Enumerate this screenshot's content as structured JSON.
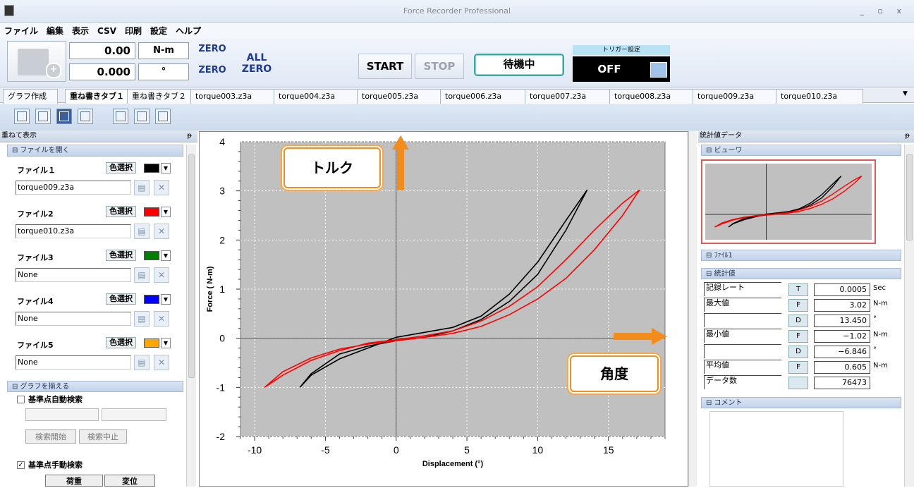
{
  "window": {
    "title": "Force Recorder Professional",
    "controls": "_ ▫ x"
  },
  "menu": [
    "ファイル",
    "編集",
    "表示",
    "CSV",
    "印刷",
    "設定",
    "ヘルプ"
  ],
  "toolbar": {
    "force_value": "0.00",
    "force_unit": "N-m",
    "angle_value": "0.000",
    "angle_unit": "°",
    "zero1": "ZERO",
    "zero2": "ZERO",
    "all_zero_1": "ALL",
    "all_zero_2": "ZERO",
    "start": "START",
    "stop": "STOP",
    "status": "待機中",
    "trigger_label": "トリガー設定",
    "trigger_value": "OFF"
  },
  "tabs": [
    "グラフ作成",
    "重ね書きタブ１",
    "重ね書きタブ２",
    "torque003.z3a",
    "torque004.z3a",
    "torque005.z3a",
    "torque006.z3a",
    "torque007.z3a",
    "torque008.z3a",
    "torque009.z3a",
    "torque010.z3a"
  ],
  "tab_menu_arrow": "▼",
  "left_panel": {
    "title": "重ねて表示",
    "pin": "ᵽ",
    "section_open": "⊟ ファイルを開く",
    "color_select": "色選択",
    "files": [
      {
        "label": "ファイル１",
        "value": "torque009.z3a",
        "color": "#000000"
      },
      {
        "label": "ファイル2",
        "value": "torque010.z3a",
        "color": "#ff0000"
      },
      {
        "label": "ファイル3",
        "value": "None",
        "color": "#008000"
      },
      {
        "label": "ファイル4",
        "value": "None",
        "color": "#0000ff"
      },
      {
        "label": "ファイル5",
        "value": "None",
        "color": "#ffa500"
      }
    ],
    "section_align": "⊟ グラフを揃える",
    "auto_search": "基準点自動検索",
    "search_start": "検索開始",
    "search_stop": "検索中止",
    "manual_search": "基準点手動検索",
    "col_load": "荷重",
    "col_disp": "変位"
  },
  "chart_data": {
    "type": "line",
    "xlabel": "Displacement (°)",
    "ylabel": "Force ( N-m)",
    "xlim": [
      -11,
      19
    ],
    "ylim": [
      -2,
      4
    ],
    "xticks": [
      "-10",
      "-5",
      "0",
      "5",
      "10",
      "15"
    ],
    "yticks": [
      "-2",
      "-1",
      "0",
      "1",
      "2",
      "3",
      "4"
    ],
    "grid": true,
    "series": [
      {
        "color": "#000000",
        "x": [
          -6.8,
          -6,
          -4,
          -2,
          0,
          2,
          4,
          6,
          8,
          10,
          12,
          13.5,
          12,
          10,
          8,
          6,
          4,
          2,
          0,
          -2,
          -4,
          -6,
          -6.8
        ],
        "y": [
          -1.0,
          -0.75,
          -0.42,
          -0.2,
          0.02,
          0.12,
          0.22,
          0.45,
          0.9,
          1.55,
          2.4,
          3.02,
          2.2,
          1.3,
          0.75,
          0.38,
          0.15,
          0.02,
          -0.05,
          -0.16,
          -0.32,
          -0.72,
          -1.0
        ]
      },
      {
        "color": "#ff0000",
        "x": [
          -9.3,
          -8,
          -6,
          -4,
          -2,
          0,
          2,
          4,
          6,
          8,
          10,
          12,
          14,
          16,
          17.2,
          16,
          14,
          12,
          10,
          8,
          6,
          4,
          2,
          0,
          -2,
          -4,
          -6,
          -8,
          -9.3
        ],
        "y": [
          -1.0,
          -0.75,
          -0.45,
          -0.25,
          -0.1,
          -0.03,
          0.05,
          0.15,
          0.35,
          0.65,
          1.05,
          1.6,
          2.2,
          2.75,
          3.02,
          2.5,
          1.8,
          1.22,
          0.8,
          0.48,
          0.24,
          0.1,
          0.02,
          -0.05,
          -0.12,
          -0.22,
          -0.4,
          -0.68,
          -1.0
        ]
      }
    ]
  },
  "annotations": {
    "torque": "トルク",
    "angle": "角度"
  },
  "right_panel": {
    "title": "統計値データ",
    "pin": "ᵽ",
    "viewer": "⊟ ビューワ",
    "file1": "⊟ ﾌｧｲﾙ1",
    "stats": "⊟ 統計値",
    "comment": "⊟ コメント",
    "rows": [
      {
        "label": "記録レート",
        "letter": "T",
        "value": "0.0005",
        "unit": "Sec"
      },
      {
        "label": "最大値",
        "letter": "F",
        "value": "3.02",
        "unit": "N-m"
      },
      {
        "label": "",
        "letter": "D",
        "value": "13.450",
        "unit": "°"
      },
      {
        "label": "最小値",
        "letter": "F",
        "value": "−1.02",
        "unit": "N-m"
      },
      {
        "label": "",
        "letter": "D",
        "value": "−6.846",
        "unit": "°"
      },
      {
        "label": "平均値",
        "letter": "F",
        "value": "0.605",
        "unit": "N-m"
      },
      {
        "label": "データ数",
        "letter": "",
        "value": "76473",
        "unit": ""
      }
    ]
  }
}
